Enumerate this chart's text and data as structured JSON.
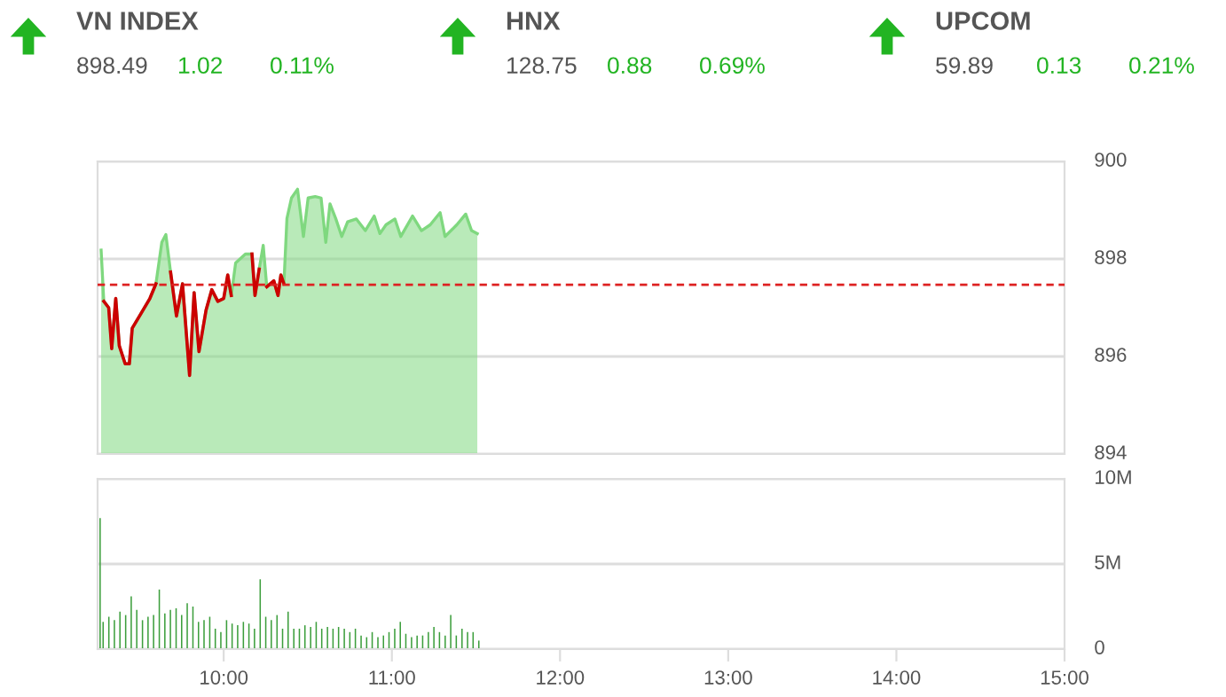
{
  "chart_data": [
    {
      "type": "other",
      "categories": [
        "VN INDEX",
        "HNX",
        "UPCOM"
      ],
      "series": [
        {
          "color": "#555555",
          "values": [
            898.49,
            128.75,
            59.89
          ],
          "value_labels": [
            "898.49",
            "128.75",
            "59.89"
          ]
        },
        {
          "color": "#22b422",
          "values": [
            1.02,
            0.88,
            0.13
          ],
          "value_labels": [
            "1.02",
            "0.88",
            "0.13"
          ]
        },
        {
          "color": "#22b422",
          "values": [
            0.11,
            0.69,
            0.21
          ],
          "value_labels": [
            "0.11%",
            "0.69%",
            "0.21%"
          ]
        }
      ]
    },
    {
      "type": "area",
      "x": [
        9.271,
        9.287,
        9.316,
        9.334,
        9.358,
        9.379,
        9.414,
        9.439,
        9.456,
        9.508,
        9.561,
        9.597,
        9.632,
        9.656,
        9.684,
        9.719,
        9.755,
        9.797,
        9.824,
        9.853,
        9.895,
        9.929,
        9.965,
        10.0,
        10.024,
        10.045,
        10.071,
        10.129,
        10.168,
        10.186,
        10.211,
        10.235,
        10.256,
        10.298,
        10.323,
        10.34,
        10.358,
        10.376,
        10.403,
        10.439,
        10.474,
        10.502,
        10.544,
        10.579,
        10.607,
        10.632,
        10.666,
        10.702,
        10.737,
        10.789,
        10.842,
        10.895,
        10.929,
        10.965,
        11.018,
        11.053,
        11.123,
        11.176,
        11.228,
        11.287,
        11.316,
        11.386,
        11.439,
        11.474,
        11.508
      ],
      "series": [
        {
          "type": "area",
          "color": "#7fd87f",
          "values": [
            898.18,
            897.13,
            897.0,
            896.16,
            897.19,
            896.22,
            895.85,
            895.85,
            896.58,
            896.88,
            897.19,
            897.49,
            898.34,
            898.5,
            897.73,
            896.83,
            897.49,
            895.61,
            897.31,
            896.1,
            896.95,
            897.37,
            897.13,
            897.19,
            897.67,
            897.25,
            897.92,
            898.1,
            898.1,
            897.25,
            897.79,
            898.28,
            897.43,
            897.55,
            897.25,
            897.67,
            897.49,
            898.83,
            899.25,
            899.43,
            898.46,
            899.25,
            899.28,
            899.25,
            898.34,
            899.13,
            898.83,
            898.46,
            898.76,
            898.82,
            898.58,
            898.88,
            898.52,
            898.7,
            898.82,
            898.46,
            898.88,
            898.58,
            898.7,
            898.95,
            898.46,
            898.7,
            898.92,
            898.58,
            898.52
          ]
        },
        {
          "type": "line",
          "color": "#cc0000",
          "values": [
            null,
            897.13,
            897.0,
            896.16,
            897.19,
            896.22,
            895.85,
            895.85,
            896.58,
            896.88,
            897.19,
            897.49,
            null,
            null,
            897.73,
            896.83,
            897.49,
            895.61,
            897.31,
            896.1,
            896.95,
            897.37,
            897.13,
            897.19,
            897.67,
            897.25,
            null,
            null,
            898.1,
            897.25,
            897.79,
            null,
            897.43,
            897.55,
            897.25,
            897.67,
            897.49,
            null,
            null,
            null,
            null,
            null,
            null,
            null,
            null,
            null,
            null,
            null,
            null,
            null,
            null,
            null,
            null,
            null,
            null,
            null,
            null,
            null,
            null,
            null,
            null,
            null,
            null,
            null,
            null
          ]
        }
      ],
      "xlim": [
        9.25,
        15
      ],
      "ylim": [
        894,
        900
      ],
      "yticks": [
        894,
        896,
        898,
        900
      ],
      "tick_labels": "y",
      "grid": "y",
      "ref_lines": [
        {
          "axis": "y",
          "value": 897.47,
          "color": "#dd2222",
          "line_style": "dashed"
        }
      ]
    },
    {
      "type": "bar",
      "x": [
        9.265,
        9.283,
        9.317,
        9.35,
        9.383,
        9.417,
        9.45,
        9.483,
        9.517,
        9.55,
        9.583,
        9.617,
        9.65,
        9.683,
        9.717,
        9.75,
        9.783,
        9.817,
        9.85,
        9.883,
        9.917,
        9.95,
        9.983,
        10.017,
        10.05,
        10.083,
        10.117,
        10.15,
        10.183,
        10.217,
        10.25,
        10.283,
        10.317,
        10.35,
        10.383,
        10.417,
        10.45,
        10.483,
        10.517,
        10.55,
        10.583,
        10.617,
        10.65,
        10.683,
        10.717,
        10.75,
        10.783,
        10.817,
        10.85,
        10.883,
        10.917,
        10.95,
        10.983,
        11.017,
        11.05,
        11.083,
        11.117,
        11.15,
        11.183,
        11.217,
        11.25,
        11.283,
        11.317,
        11.35,
        11.383,
        11.417,
        11.45,
        11.483,
        11.517
      ],
      "values": [
        7.7,
        1.6,
        1.9,
        1.7,
        2.2,
        2.0,
        3.1,
        2.3,
        1.7,
        1.9,
        2.0,
        3.5,
        2.1,
        2.3,
        2.4,
        2.0,
        2.7,
        2.5,
        1.6,
        1.7,
        1.9,
        1.2,
        1.0,
        1.7,
        1.5,
        1.4,
        1.6,
        1.5,
        1.2,
        4.1,
        1.9,
        1.7,
        2.0,
        1.2,
        2.2,
        1.2,
        1.2,
        1.4,
        1.3,
        1.6,
        1.2,
        1.3,
        1.2,
        1.3,
        1.2,
        1.0,
        1.2,
        0.8,
        0.7,
        1.0,
        0.7,
        0.8,
        1.0,
        1.2,
        1.6,
        0.9,
        0.7,
        0.8,
        0.8,
        1.0,
        1.3,
        1.0,
        0.8,
        2.0,
        0.8,
        1.2,
        1.0,
        1.0,
        0.5
      ],
      "color": "#3c9e3c",
      "xlim": [
        9.25,
        15
      ],
      "xticks": [
        {
          "value": 10,
          "label": "10:00"
        },
        {
          "value": 11,
          "label": "11:00"
        },
        {
          "value": 12,
          "label": "12:00"
        },
        {
          "value": 13,
          "label": "13:00"
        },
        {
          "value": 14,
          "label": "14:00"
        },
        {
          "value": 15,
          "label": "15:00"
        }
      ],
      "ylim": [
        0,
        10
      ],
      "yticks": [
        0,
        {
          "value": 5,
          "label": "5M"
        },
        {
          "value": 10,
          "label": "10M"
        }
      ],
      "grid": "y"
    }
  ]
}
